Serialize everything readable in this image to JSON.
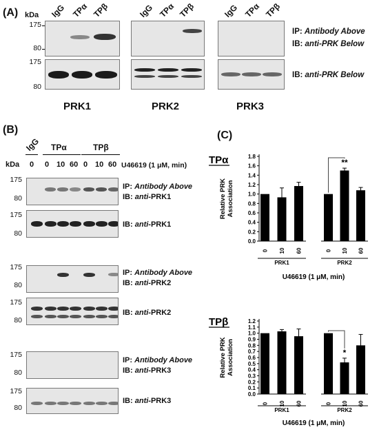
{
  "panel_a": {
    "label": "(A)",
    "kda": "kDa",
    "lanes": [
      "IgG",
      "TPα",
      "TPβ"
    ],
    "mw_top": [
      "175",
      "80"
    ],
    "mw_bottom": [
      "175",
      "80"
    ],
    "ip_text": "IP: ",
    "ip_italic": "Antibody Above",
    "ib_text": "IB: ",
    "ib_italic_prefix": "anti",
    "ib_suffix": "-PRK Below",
    "ib2_text": "IB: ",
    "ib2_italic": "anti",
    "ib2_suffix": "-PRK Below",
    "groups": [
      "PRK1",
      "PRK2",
      "PRK3"
    ]
  },
  "panel_b": {
    "label": "(B)",
    "kda": "kDa",
    "lane_groups": [
      "IgG",
      "TPα",
      "TPβ"
    ],
    "timepoints": [
      "0",
      "0",
      "10",
      "60",
      "0",
      "10",
      "60"
    ],
    "treatment": "U46619 (1 μM, min)",
    "mw": [
      "175",
      "80"
    ],
    "ip_prefix": "IP: ",
    "ip_italic": "Antibody Above",
    "ib_prefix": "IB: ",
    "anti": "anti",
    "prk1": "-PRK1",
    "prk2": "-PRK2",
    "prk3": "-PRK3"
  },
  "panel_c": {
    "label": "(C)",
    "tpa": "TPα",
    "tpb": "TPβ",
    "ylabel_1": "Relative PRK",
    "ylabel_2": "Association",
    "xlabel": "U46619 (1 μM, min)",
    "group_labels": [
      "PRK1",
      "PRK2"
    ]
  },
  "chart_data": [
    {
      "type": "bar",
      "title": "TPα",
      "ylabel": "Relative PRK Association",
      "xlabel": "U46619 (1 μM, min)",
      "ylim": [
        0,
        1.8
      ],
      "yticks": [
        "0.0",
        "0.2",
        "0.4",
        "0.6",
        "0.8",
        "1.0",
        "1.2",
        "1.4",
        "1.6",
        "1.8"
      ],
      "groups": [
        "PRK1",
        "PRK2"
      ],
      "categories": [
        "0",
        "10",
        "60"
      ],
      "series": [
        {
          "values": [
            1.0,
            0.93,
            1.17
          ],
          "errors": [
            0,
            0.2,
            0.08
          ]
        },
        {
          "values": [
            1.0,
            1.5,
            1.08
          ],
          "errors": [
            0,
            0.05,
            0.06
          ]
        }
      ],
      "annotations": [
        {
          "group": "PRK2",
          "category": "10",
          "text": "**"
        }
      ]
    },
    {
      "type": "bar",
      "title": "TPβ",
      "ylabel": "Relative PRK Association",
      "xlabel": "U46619 (1 μM, min)",
      "ylim": [
        0,
        1.2
      ],
      "yticks": [
        "0.0",
        "0.1",
        "0.2",
        "0.3",
        "0.4",
        "0.5",
        "0.6",
        "0.7",
        "0.8",
        "0.9",
        "1.0",
        "1.1",
        "1.2"
      ],
      "groups": [
        "PRK1",
        "PRK2"
      ],
      "categories": [
        "0",
        "10",
        "60"
      ],
      "series": [
        {
          "values": [
            1.0,
            1.03,
            0.95
          ],
          "errors": [
            0,
            0.03,
            0.12
          ]
        },
        {
          "values": [
            1.0,
            0.52,
            0.8
          ],
          "errors": [
            0,
            0.07,
            0.18
          ]
        }
      ],
      "annotations": [
        {
          "group": "PRK2",
          "category": "10",
          "text": "*"
        }
      ]
    }
  ]
}
